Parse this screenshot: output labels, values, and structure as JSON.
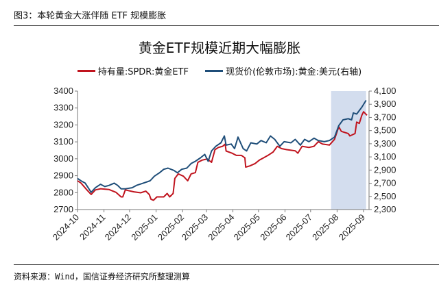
{
  "figure_title": "图3：本轮黄金大涨伴随 ETF 规模膨胀",
  "source": "资料来源：Wind，国信证券经济研究所整理测算",
  "chart_data": {
    "type": "line",
    "title": "黄金ETF规模近期大幅膨胀",
    "xlabel": "",
    "ylabel": "",
    "ylim": [
      2700,
      3400
    ],
    "y2lim": [
      2300,
      4100
    ],
    "yticks": [
      "2700",
      "2800",
      "2900",
      "3000",
      "3100",
      "3200",
      "3300",
      "3400"
    ],
    "y2ticks": [
      "2,300",
      "2,500",
      "2,700",
      "2,900",
      "3,100",
      "3,300",
      "3,500",
      "3,700",
      "3,900",
      "4,100"
    ],
    "xticks": [
      "2024-10",
      "2024-11",
      "2024-12",
      "2025-01",
      "2025-02",
      "2025-03",
      "2025-04",
      "2025-05",
      "2025-06",
      "2025-07",
      "2025-08",
      "2025-09"
    ],
    "grid": false,
    "legend_position": "top",
    "highlight_range": [
      "2025-07-25",
      "2025-09-04"
    ],
    "colors": {
      "red": "#C0141E",
      "blue": "#1F4E79",
      "highlight": "#D3DDEE"
    },
    "series": [
      {
        "name": "持有量:SPDR:黄金ETF",
        "axis": "left",
        "color": "#C0141E",
        "x": [
          "2024-10-01",
          "2024-10-05",
          "2024-10-12",
          "2024-10-17",
          "2024-10-22",
          "2024-10-28",
          "2024-11-07",
          "2024-11-15",
          "2024-11-21",
          "2024-11-23",
          "2024-11-26",
          "2024-12-06",
          "2024-12-14",
          "2024-12-20",
          "2024-12-24",
          "2024-12-26",
          "2024-12-29",
          "2025-01-02",
          "2025-01-10",
          "2025-01-14",
          "2025-01-17",
          "2025-01-21",
          "2025-01-23",
          "2025-01-27",
          "2025-02-02",
          "2025-02-07",
          "2025-02-11",
          "2025-02-16",
          "2025-02-19",
          "2025-02-24",
          "2025-03-02",
          "2025-03-07",
          "2025-03-11",
          "2025-03-15",
          "2025-03-20",
          "2025-03-23",
          "2025-03-24",
          "2025-03-31",
          "2025-04-05",
          "2025-04-11",
          "2025-04-15",
          "2025-04-16",
          "2025-04-21",
          "2025-04-27",
          "2025-05-02",
          "2025-05-07",
          "2025-05-12",
          "2025-05-18",
          "2025-05-23",
          "2025-05-28",
          "2025-06-03",
          "2025-06-13",
          "2025-06-16",
          "2025-06-21",
          "2025-06-29",
          "2025-07-05",
          "2025-07-10",
          "2025-07-15",
          "2025-07-23",
          "2025-07-29",
          "2025-08-03",
          "2025-08-06",
          "2025-08-14",
          "2025-08-16",
          "2025-08-22",
          "2025-08-24",
          "2025-08-27",
          "2025-08-30",
          "2025-09-01",
          "2025-09-05"
        ],
        "values": [
          2870,
          2857,
          2816,
          2789,
          2816,
          2823,
          2818,
          2802,
          2775,
          2775,
          2816,
          2805,
          2799,
          2809,
          2789,
          2761,
          2755,
          2775,
          2775,
          2795,
          2775,
          2795,
          2884,
          2911,
          2897,
          2870,
          2911,
          2918,
          2979,
          2992,
          2999,
          2979,
          3054,
          3067,
          3074,
          3087,
          3046,
          3033,
          3020,
          3020,
          3006,
          2951,
          2958,
          2972,
          2992,
          3006,
          3020,
          3040,
          3074,
          3060,
          3054,
          3047,
          3033,
          3074,
          3067,
          3074,
          3101,
          3087,
          3081,
          3115,
          3189,
          3162,
          3149,
          3135,
          3149,
          3217,
          3209,
          3257,
          3278,
          3257
        ]
      },
      {
        "name": "现货价(伦敦市场):黄金:美元(右轴)",
        "axis": "right",
        "color": "#1F4E79",
        "x": [
          "2024-10-01",
          "2024-10-05",
          "2024-10-10",
          "2024-10-17",
          "2024-10-22",
          "2024-10-28",
          "2024-11-02",
          "2024-11-07",
          "2024-11-13",
          "2024-11-17",
          "2024-11-21",
          "2024-11-26",
          "2024-12-04",
          "2024-12-09",
          "2024-12-17",
          "2024-12-25",
          "2024-12-30",
          "2025-01-05",
          "2025-01-10",
          "2025-01-15",
          "2025-01-22",
          "2025-01-26",
          "2025-01-31",
          "2025-02-06",
          "2025-02-11",
          "2025-02-16",
          "2025-02-22",
          "2025-02-27",
          "2025-03-03",
          "2025-03-07",
          "2025-03-12",
          "2025-03-18",
          "2025-03-22",
          "2025-03-24",
          "2025-03-30",
          "2025-04-03",
          "2025-04-07",
          "2025-04-13",
          "2025-04-17",
          "2025-04-22",
          "2025-04-29",
          "2025-05-04",
          "2025-05-10",
          "2025-05-15",
          "2025-05-20",
          "2025-05-26",
          "2025-05-31",
          "2025-06-08",
          "2025-06-13",
          "2025-06-19",
          "2025-06-24",
          "2025-06-29",
          "2025-07-05",
          "2025-07-10",
          "2025-07-17",
          "2025-07-23",
          "2025-07-29",
          "2025-08-03",
          "2025-08-08",
          "2025-08-14",
          "2025-08-18",
          "2025-08-20",
          "2025-08-24",
          "2025-08-30",
          "2025-09-04"
        ],
        "values": [
          2772,
          2737,
          2702,
          2562,
          2632,
          2684,
          2650,
          2667,
          2702,
          2667,
          2615,
          2615,
          2632,
          2667,
          2702,
          2737,
          2807,
          2859,
          2912,
          2929,
          2894,
          2859,
          2912,
          2929,
          2999,
          3034,
          3086,
          3139,
          3034,
          3191,
          3261,
          3314,
          3418,
          3279,
          3296,
          3226,
          3401,
          3226,
          3191,
          3314,
          3296,
          3349,
          3314,
          3418,
          3366,
          3261,
          3331,
          3314,
          3366,
          3279,
          3366,
          3331,
          3384,
          3349,
          3331,
          3349,
          3401,
          3576,
          3663,
          3681,
          3663,
          3768,
          3751,
          3855,
          3960
        ]
      }
    ]
  }
}
